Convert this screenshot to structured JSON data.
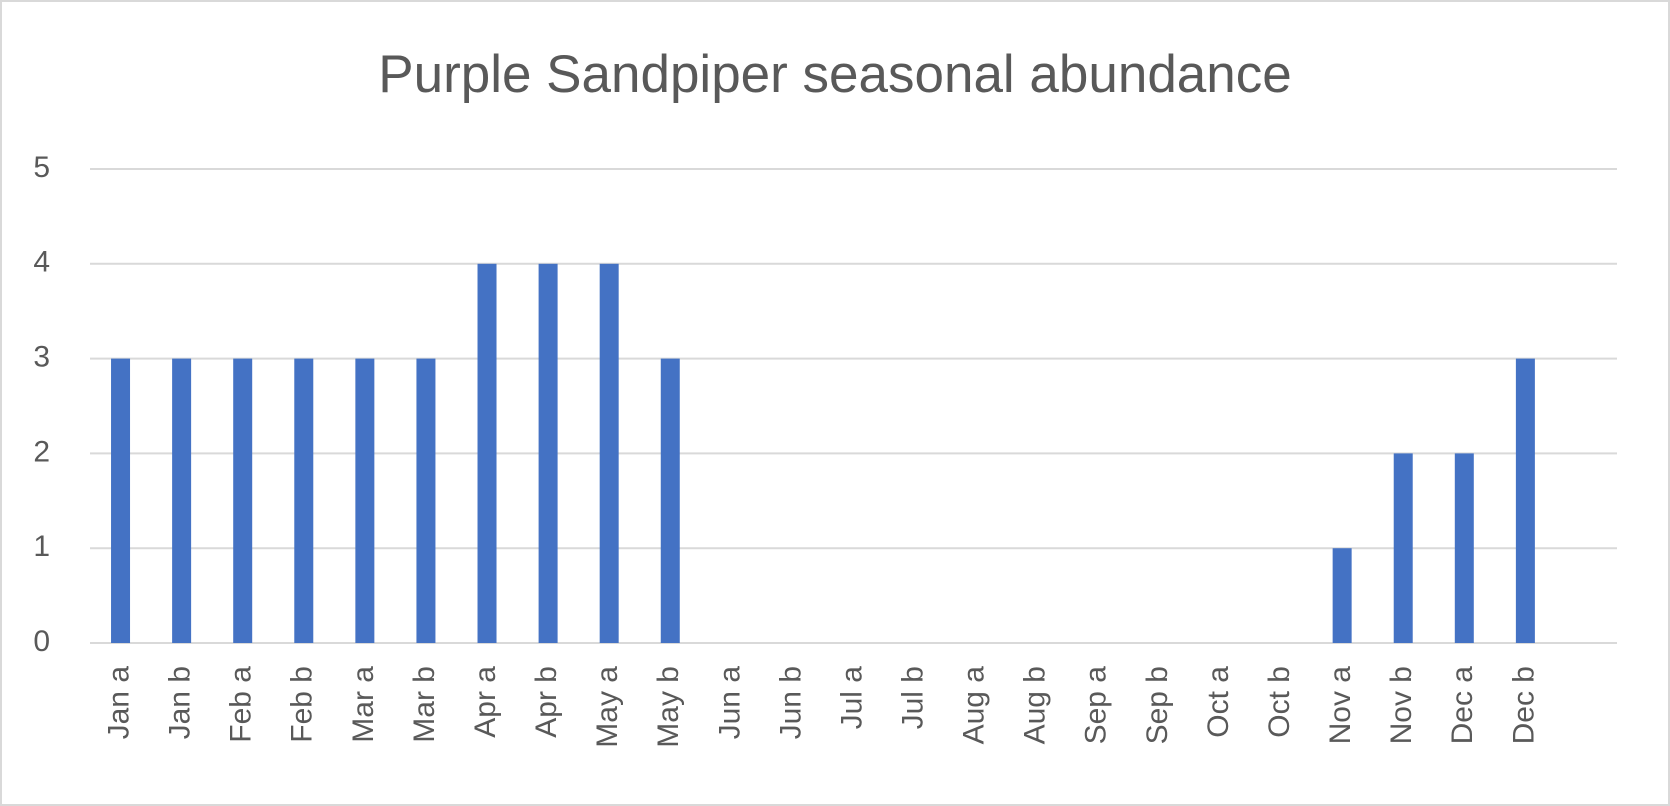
{
  "chart_data": {
    "type": "bar",
    "title": "Purple Sandpiper seasonal abundance",
    "categories": [
      "Jan a",
      "Jan b",
      "Feb a",
      "Feb b",
      "Mar a",
      "Mar b",
      "Apr a",
      "Apr b",
      "May a",
      "May b",
      "Jun a",
      "Jun b",
      "Jul a",
      "Jul b",
      "Aug a",
      "Aug b",
      "Sep a",
      "Sep b",
      "Oct a",
      "Oct b",
      "Nov a",
      "Nov b",
      "Dec a",
      "Dec b",
      null
    ],
    "values": [
      3,
      3,
      3,
      3,
      3,
      3,
      4,
      4,
      4,
      3,
      0,
      0,
      0,
      0,
      0,
      0,
      0,
      0,
      0,
      0,
      1,
      2,
      2,
      3,
      0
    ],
    "color": "#4472c4",
    "ylim": [
      0,
      5
    ],
    "yticks": [
      0,
      1,
      2,
      3,
      4,
      5
    ],
    "grid": true
  }
}
